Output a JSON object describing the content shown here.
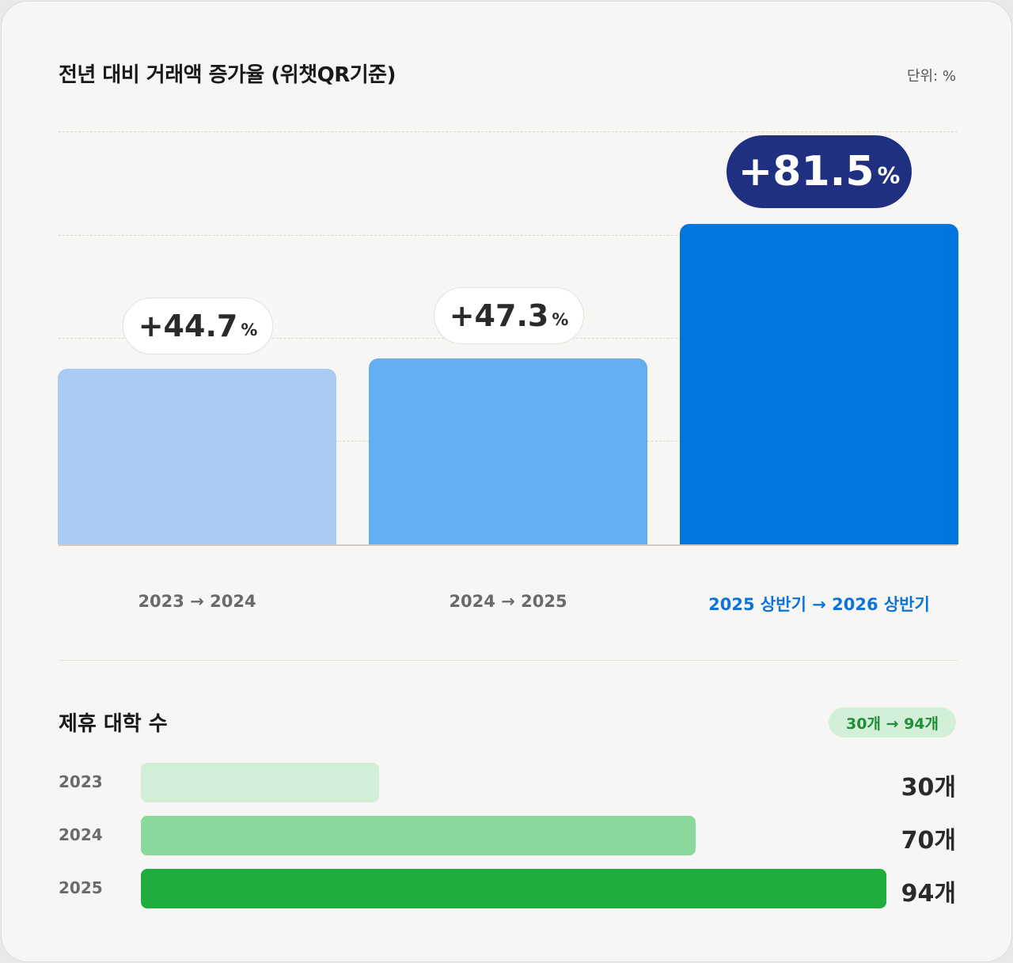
{
  "chart_data": [
    {
      "type": "bar",
      "title": "전년 대비 거래액 증가율 (위챗QR기준)",
      "unit_label": "단위: %",
      "categories": [
        "2023 → 2024",
        "2024 → 2025",
        "2025 상반기 → 2026 상반기"
      ],
      "values": [
        44.7,
        47.3,
        81.5
      ],
      "data_labels": [
        {
          "value": "+44.7",
          "suffix": "%"
        },
        {
          "value": "+47.3",
          "suffix": "%"
        },
        {
          "value": "+81.5",
          "suffix": "%"
        }
      ],
      "colors": [
        "#a9cbf1",
        "#63aef0",
        "#0074df"
      ],
      "highlight_index": 2,
      "grid": true
    },
    {
      "type": "bar",
      "orientation": "horizontal",
      "title": "제휴 대학 수",
      "badge": "30개 → 94개",
      "categories": [
        "2023",
        "2024",
        "2025"
      ],
      "values": [
        30,
        70,
        94
      ],
      "value_labels": [
        "30개",
        "70개",
        "94개"
      ],
      "colors": [
        "#d1eed6",
        "#89d99a",
        "#1fae3d"
      ]
    }
  ]
}
